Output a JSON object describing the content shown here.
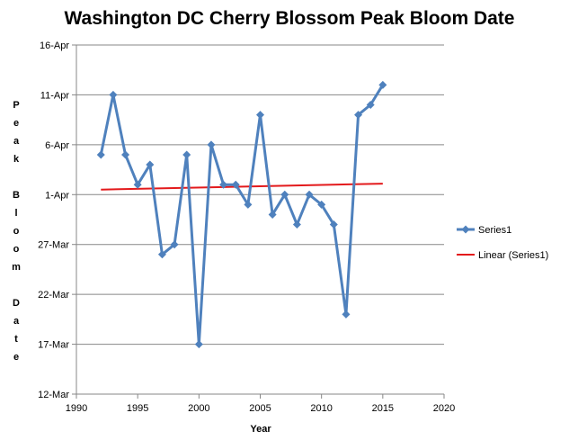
{
  "chart_data": {
    "type": "line",
    "title": "Washington DC Cherry Blossom Peak Bloom Date",
    "xlabel": "Year",
    "ylabel": "Peak Bloom Date",
    "xlim": [
      1990,
      2020
    ],
    "x_ticks": [
      1990,
      1995,
      2000,
      2005,
      2010,
      2015,
      2020
    ],
    "ylim_day_of_year": [
      71,
      106
    ],
    "y_ticks": [
      {
        "day": 71,
        "label": "12-Mar"
      },
      {
        "day": 76,
        "label": "17-Mar"
      },
      {
        "day": 81,
        "label": "22-Mar"
      },
      {
        "day": 86,
        "label": "27-Mar"
      },
      {
        "day": 91,
        "label": "1-Apr"
      },
      {
        "day": 96,
        "label": "6-Apr"
      },
      {
        "day": 101,
        "label": "11-Apr"
      },
      {
        "day": 106,
        "label": "16-Apr"
      }
    ],
    "grid": "horizontal",
    "legend_position": "right",
    "series": [
      {
        "name": "Series1",
        "color": "#4f81bd",
        "marker": "diamond",
        "x": [
          1992,
          1993,
          1994,
          1995,
          1996,
          1997,
          1998,
          1999,
          2000,
          2001,
          2002,
          2003,
          2004,
          2005,
          2006,
          2007,
          2008,
          2009,
          2010,
          2011,
          2012,
          2013,
          2014,
          2015
        ],
        "y_labels": [
          "5-Apr",
          "11-Apr",
          "5-Apr",
          "2-Apr",
          "4-Apr",
          "26-Mar",
          "27-Mar",
          "5-Apr",
          "17-Mar",
          "6-Apr",
          "2-Apr",
          "2-Apr",
          "31-Mar",
          "9-Apr",
          "30-Mar",
          "1-Apr",
          "29-Mar",
          "1-Apr",
          "31-Mar",
          "29-Mar",
          "20-Mar",
          "9-Apr",
          "10-Apr",
          "12-Apr"
        ],
        "y_day_of_year": [
          95,
          101,
          95,
          92,
          94,
          85,
          86,
          95,
          76,
          96,
          92,
          92,
          90,
          99,
          89,
          91,
          88,
          91,
          90,
          88,
          79,
          99,
          100,
          102
        ]
      },
      {
        "name": "Linear (Series1)",
        "color": "#e31a1c",
        "marker": "none",
        "x": [
          1992,
          2015
        ],
        "y_day_of_year": [
          91.5,
          92.1
        ]
      }
    ]
  }
}
